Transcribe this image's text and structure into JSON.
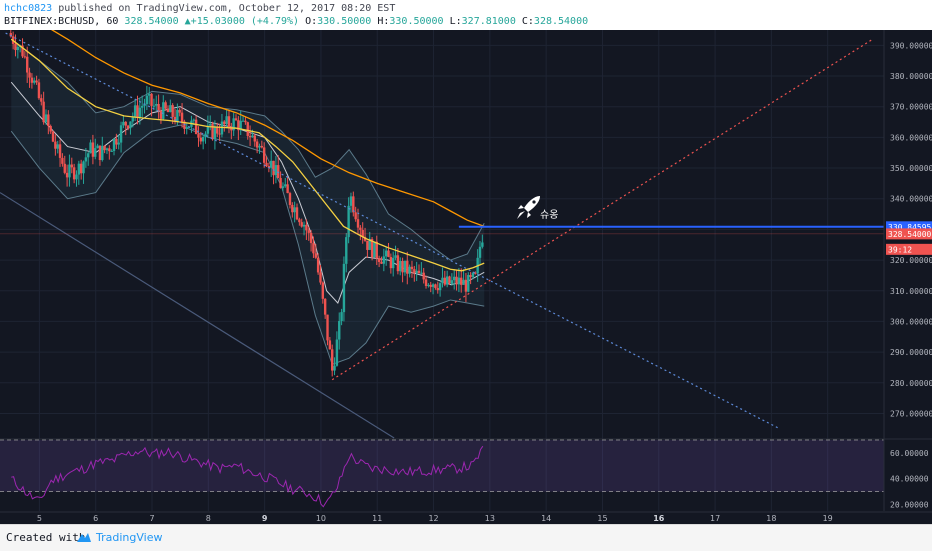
{
  "header": {
    "username": "hchc0823",
    "published_text": " published on TradingView.com, October 12, 2017 08:20 EST",
    "symbol_info": "BITFINEX:BCHUSD, 60",
    "price": "328.54000",
    "change_arrow": "▲",
    "change": "+15.03000 (+4.79%)",
    "ohlc": {
      "o_label": "O:",
      "o_val": "330.50000",
      "h_label": "H:",
      "h_val": "330.50000",
      "l_label": "L:",
      "l_val": "327.81000",
      "c_label": "C:",
      "c_val": "328.54000"
    }
  },
  "annotation": {
    "text": "슈옹",
    "icon": "rocket-icon"
  },
  "footer": {
    "created_with": "Created with",
    "brand": "TradingView",
    "logo_icon": "tradingview-logo-icon"
  },
  "colors": {
    "background": "#131722",
    "up": "#26a69a",
    "down": "#ef5350",
    "ma_yellow": "#f5d142",
    "ma_orange": "#ff9800",
    "bollinger": "#5b7a8a",
    "rsi_line": "#9c27b0",
    "blue_line": "#2962ff",
    "support_line": "#ef5350",
    "trend_line": "#5d8ad8"
  },
  "chart_data": {
    "type": "candlestick",
    "price_axis": {
      "ylim": [
        262,
        395
      ],
      "tick_values": [
        270,
        280,
        290,
        300,
        310,
        320,
        330,
        340,
        350,
        360,
        370,
        380,
        390
      ],
      "tick_labels": [
        "270.00000",
        "280.00000",
        "290.00000",
        "300.00000",
        "310.00000",
        "320.00000",
        "330.00000",
        "340.00000",
        "350.00000",
        "360.00000",
        "370.00000",
        "380.00000",
        "390.00000"
      ]
    },
    "x_axis": {
      "xlim": [
        4.3,
        20.0
      ],
      "ticks": [
        5,
        6,
        7,
        8,
        9,
        10,
        11,
        12,
        13,
        14,
        15,
        16,
        17,
        18,
        19
      ],
      "tick_labels": [
        "5",
        "6",
        "7",
        "8",
        "9",
        "10",
        "11",
        "12",
        "13",
        "14",
        "15",
        "16",
        "17",
        "18",
        "19"
      ],
      "bold_ticks": [
        "9",
        "16"
      ]
    },
    "last_candle_time": 12.9,
    "price_badges": [
      {
        "label": "330.84595",
        "value": 330.84595,
        "color": "#2962ff"
      },
      {
        "label": "328.54000",
        "value": 328.54,
        "color": "#ef5350"
      },
      {
        "label": "39:12",
        "value": 323.5,
        "color": "#ef5350"
      }
    ],
    "horizontal_lines": [
      {
        "value": 330.84595,
        "color": "#2962ff",
        "from_x": 12.45
      }
    ],
    "trend_lines": [
      {
        "name": "support",
        "color": "#ef5350",
        "style": "dotted",
        "points": [
          [
            10.2,
            281
          ],
          [
            19.8,
            392
          ]
        ]
      },
      {
        "name": "resistance",
        "color": "#5d8ad8",
        "style": "dotted",
        "points": [
          [
            4.4,
            394
          ],
          [
            18.15,
            265
          ]
        ]
      },
      {
        "name": "long-down",
        "color": "#4a5a7a",
        "style": "solid",
        "points": [
          [
            4.3,
            342
          ],
          [
            11.3,
            262
          ]
        ]
      }
    ],
    "ma_yellow": [
      [
        4.5,
        392
      ],
      [
        5.0,
        385
      ],
      [
        5.5,
        376
      ],
      [
        6.0,
        370
      ],
      [
        6.5,
        367
      ],
      [
        7.0,
        366
      ],
      [
        7.3,
        365.5
      ],
      [
        7.7,
        364.5
      ],
      [
        8.0,
        363.5
      ],
      [
        8.5,
        363
      ],
      [
        8.9,
        361.5
      ],
      [
        9.2,
        357
      ],
      [
        9.5,
        352
      ],
      [
        9.8,
        345
      ],
      [
        10.1,
        338
      ],
      [
        10.4,
        331
      ],
      [
        10.8,
        327
      ],
      [
        11.2,
        324
      ],
      [
        11.6,
        321.5
      ],
      [
        12.0,
        319
      ],
      [
        12.3,
        317
      ],
      [
        12.5,
        316.5
      ],
      [
        12.7,
        317.5
      ],
      [
        12.9,
        319
      ]
    ],
    "ma_orange": [
      [
        4.5,
        403
      ],
      [
        5.5,
        392
      ],
      [
        6.0,
        386
      ],
      [
        6.5,
        381
      ],
      [
        7.0,
        377
      ],
      [
        7.5,
        374.5
      ],
      [
        8.0,
        371
      ],
      [
        8.5,
        368
      ],
      [
        9.0,
        364
      ],
      [
        9.5,
        359
      ],
      [
        10.0,
        353
      ],
      [
        10.5,
        348.5
      ],
      [
        11.0,
        345
      ],
      [
        11.5,
        342
      ],
      [
        12.0,
        339
      ],
      [
        12.3,
        336
      ],
      [
        12.6,
        333
      ],
      [
        12.9,
        331
      ]
    ],
    "bb_mid": [
      [
        4.5,
        378
      ],
      [
        5.0,
        367
      ],
      [
        5.5,
        357
      ],
      [
        6.0,
        355
      ],
      [
        6.5,
        362
      ],
      [
        7.0,
        368
      ],
      [
        7.5,
        370
      ],
      [
        8.0,
        365
      ],
      [
        8.5,
        363
      ],
      [
        9.0,
        360
      ],
      [
        9.3,
        352
      ],
      [
        9.6,
        340
      ],
      [
        9.9,
        325
      ],
      [
        10.1,
        310
      ],
      [
        10.3,
        306
      ],
      [
        10.5,
        316
      ],
      [
        10.8,
        321
      ],
      [
        11.2,
        320
      ],
      [
        11.6,
        316
      ],
      [
        12.0,
        314
      ],
      [
        12.3,
        312
      ],
      [
        12.6,
        313
      ],
      [
        12.9,
        316
      ]
    ],
    "bb_upper": [
      [
        4.5,
        392
      ],
      [
        5.0,
        385
      ],
      [
        5.5,
        378
      ],
      [
        6.0,
        368
      ],
      [
        6.5,
        370
      ],
      [
        7.0,
        375
      ],
      [
        7.5,
        374
      ],
      [
        8.0,
        370
      ],
      [
        8.5,
        369
      ],
      [
        9.0,
        367
      ],
      [
        9.3,
        362
      ],
      [
        9.6,
        356
      ],
      [
        9.9,
        347
      ],
      [
        10.2,
        350
      ],
      [
        10.5,
        356
      ],
      [
        10.8,
        348
      ],
      [
        11.2,
        335
      ],
      [
        11.6,
        330
      ],
      [
        12.0,
        324
      ],
      [
        12.3,
        320
      ],
      [
        12.6,
        322
      ],
      [
        12.9,
        332
      ]
    ],
    "bb_lower": [
      [
        4.5,
        362
      ],
      [
        5.0,
        350
      ],
      [
        5.5,
        340
      ],
      [
        6.0,
        342
      ],
      [
        6.5,
        355
      ],
      [
        7.0,
        362
      ],
      [
        7.5,
        364
      ],
      [
        8.0,
        360
      ],
      [
        8.5,
        358
      ],
      [
        9.0,
        355
      ],
      [
        9.3,
        344
      ],
      [
        9.6,
        325
      ],
      [
        9.9,
        302
      ],
      [
        10.2,
        286
      ],
      [
        10.5,
        288
      ],
      [
        10.8,
        293
      ],
      [
        11.2,
        305
      ],
      [
        11.6,
        303
      ],
      [
        12.0,
        305
      ],
      [
        12.3,
        307
      ],
      [
        12.6,
        306
      ],
      [
        12.9,
        305
      ]
    ],
    "candle_path": [
      [
        4.45,
        394
      ],
      [
        4.7,
        388
      ],
      [
        4.9,
        378
      ],
      [
        5.1,
        366
      ],
      [
        5.3,
        356
      ],
      [
        5.5,
        348
      ],
      [
        5.7,
        350
      ],
      [
        5.9,
        356
      ],
      [
        6.1,
        355
      ],
      [
        6.3,
        358
      ],
      [
        6.5,
        364
      ],
      [
        6.7,
        368
      ],
      [
        6.9,
        372
      ],
      [
        7.1,
        369
      ],
      [
        7.3,
        368
      ],
      [
        7.5,
        366
      ],
      [
        7.7,
        364
      ],
      [
        7.9,
        361
      ],
      [
        8.1,
        362
      ],
      [
        8.3,
        364
      ],
      [
        8.5,
        365
      ],
      [
        8.7,
        362
      ],
      [
        8.9,
        357
      ],
      [
        9.1,
        352
      ],
      [
        9.3,
        344
      ],
      [
        9.5,
        338
      ],
      [
        9.7,
        332
      ],
      [
        9.9,
        322
      ],
      [
        10.05,
        304
      ],
      [
        10.2,
        284
      ],
      [
        10.35,
        300
      ],
      [
        10.5,
        342
      ],
      [
        10.65,
        334
      ],
      [
        10.8,
        326
      ],
      [
        11.0,
        322
      ],
      [
        11.2,
        320
      ],
      [
        11.4,
        318
      ],
      [
        11.6,
        316
      ],
      [
        11.8,
        314
      ],
      [
        12.0,
        313
      ],
      [
        12.2,
        312
      ],
      [
        12.4,
        313
      ],
      [
        12.6,
        312
      ],
      [
        12.75,
        314
      ],
      [
        12.85,
        328
      ],
      [
        12.9,
        328.5
      ]
    ],
    "rsi": {
      "ylim": [
        15,
        70
      ],
      "tick_values": [
        20,
        40,
        60
      ],
      "tick_labels": [
        "20.00000",
        "40.00000",
        "60.00000"
      ],
      "band": [
        30,
        70
      ],
      "values": [
        [
          4.5,
          40
        ],
        [
          4.8,
          28
        ],
        [
          5.0,
          22
        ],
        [
          5.2,
          38
        ],
        [
          5.5,
          44
        ],
        [
          5.8,
          48
        ],
        [
          6.0,
          52
        ],
        [
          6.3,
          54
        ],
        [
          6.5,
          58
        ],
        [
          6.8,
          62
        ],
        [
          7.0,
          59
        ],
        [
          7.3,
          61
        ],
        [
          7.6,
          56
        ],
        [
          7.9,
          52
        ],
        [
          8.2,
          48
        ],
        [
          8.5,
          50
        ],
        [
          8.7,
          46
        ],
        [
          8.9,
          43
        ],
        [
          9.1,
          40
        ],
        [
          9.3,
          36
        ],
        [
          9.5,
          32
        ],
        [
          9.7,
          30
        ],
        [
          9.9,
          26
        ],
        [
          10.1,
          20
        ],
        [
          10.3,
          34
        ],
        [
          10.5,
          58
        ],
        [
          10.7,
          52
        ],
        [
          10.9,
          48
        ],
        [
          11.2,
          47
        ],
        [
          11.5,
          45
        ],
        [
          11.8,
          46
        ],
        [
          12.1,
          47
        ],
        [
          12.4,
          48
        ],
        [
          12.7,
          50
        ],
        [
          12.85,
          62
        ],
        [
          12.9,
          61
        ]
      ]
    }
  }
}
